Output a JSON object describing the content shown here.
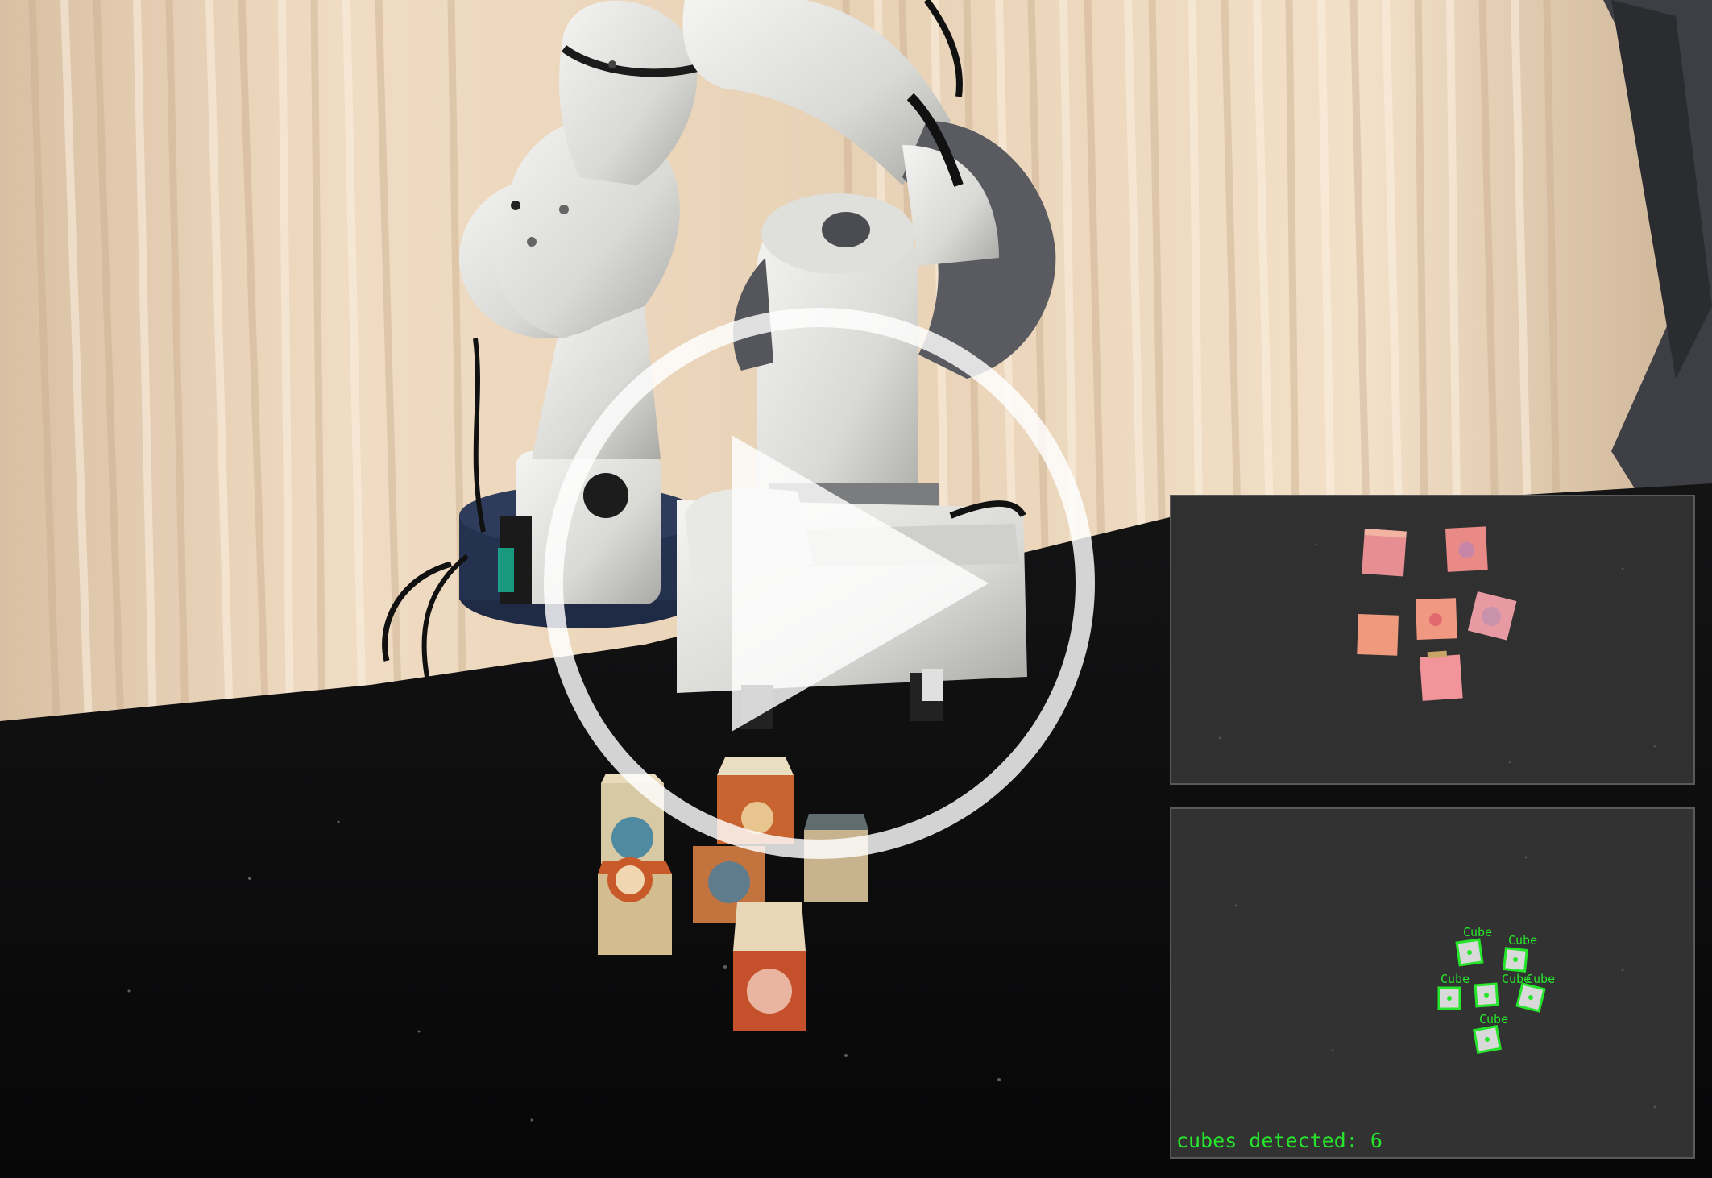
{
  "video": {
    "play_button_label": "Play video"
  },
  "inset_top": {
    "name": "camera-view-raw"
  },
  "inset_bottom": {
    "detection_label": "Cube",
    "cubes_detected_text": "cubes detected: 6",
    "cubes_detected_count": 6
  },
  "colors": {
    "detection_green": "#26e62b",
    "tabletop": "#0b0b0c",
    "curtain": "#e9d3b8"
  }
}
